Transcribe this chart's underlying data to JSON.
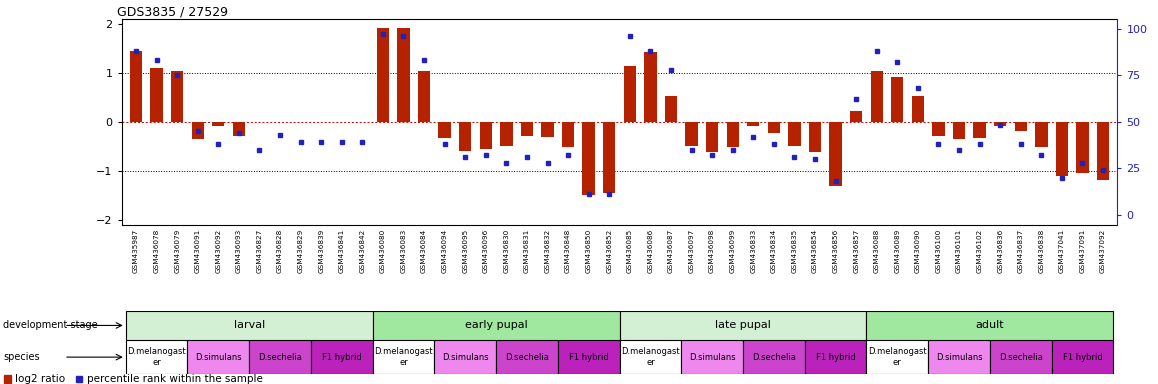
{
  "title": "GDS3835 / 27529",
  "samples": [
    "GSM435987",
    "GSM436078",
    "GSM436079",
    "GSM436091",
    "GSM436092",
    "GSM436093",
    "GSM436827",
    "GSM436828",
    "GSM436829",
    "GSM436839",
    "GSM436841",
    "GSM436842",
    "GSM436080",
    "GSM436083",
    "GSM436084",
    "GSM436094",
    "GSM436095",
    "GSM436096",
    "GSM436830",
    "GSM436831",
    "GSM436832",
    "GSM436848",
    "GSM436850",
    "GSM436852",
    "GSM436085",
    "GSM436086",
    "GSM436087",
    "GSM436097",
    "GSM436098",
    "GSM436099",
    "GSM436833",
    "GSM436834",
    "GSM436835",
    "GSM436854",
    "GSM436856",
    "GSM436857",
    "GSM436088",
    "GSM436089",
    "GSM436090",
    "GSM436100",
    "GSM436101",
    "GSM436102",
    "GSM436836",
    "GSM436837",
    "GSM436838",
    "GSM437041",
    "GSM437091",
    "GSM437092"
  ],
  "log2_ratio": [
    1.45,
    1.1,
    1.05,
    -0.35,
    -0.08,
    -0.28,
    0.0,
    0.0,
    0.0,
    0.0,
    0.0,
    0.0,
    1.92,
    1.92,
    1.05,
    -0.32,
    -0.6,
    -0.55,
    -0.5,
    -0.28,
    -0.3,
    -0.52,
    -1.5,
    -1.45,
    1.15,
    1.42,
    0.52,
    -0.5,
    -0.62,
    -0.52,
    -0.08,
    -0.22,
    -0.5,
    -0.62,
    -1.32,
    0.22,
    1.05,
    0.92,
    0.52,
    -0.28,
    -0.35,
    -0.32,
    -0.08,
    -0.18,
    -0.52,
    -1.1,
    -1.05,
    -1.18
  ],
  "percentile": [
    88,
    83,
    75,
    45,
    38,
    44,
    35,
    43,
    39,
    39,
    39,
    39,
    97,
    96,
    83,
    38,
    31,
    32,
    28,
    31,
    28,
    32,
    11,
    11,
    96,
    88,
    78,
    35,
    32,
    35,
    42,
    38,
    31,
    30,
    18,
    62,
    88,
    82,
    68,
    38,
    35,
    38,
    48,
    38,
    32,
    20,
    28,
    24
  ],
  "dev_stages": [
    {
      "label": "larval",
      "start": 0,
      "end": 11,
      "color": "#d4f0d4"
    },
    {
      "label": "early pupal",
      "start": 12,
      "end": 23,
      "color": "#a0e8a0"
    },
    {
      "label": "late pupal",
      "start": 24,
      "end": 35,
      "color": "#d4f0d4"
    },
    {
      "label": "adult",
      "start": 36,
      "end": 47,
      "color": "#a0e8a0"
    }
  ],
  "species": [
    {
      "label": "D.melanogast\ner",
      "start": 0,
      "end": 2,
      "color": "#ffffff"
    },
    {
      "label": "D.simulans",
      "start": 3,
      "end": 5,
      "color": "#ee88ee"
    },
    {
      "label": "D.sechelia",
      "start": 6,
      "end": 8,
      "color": "#cc44cc"
    },
    {
      "label": "F1 hybrid",
      "start": 9,
      "end": 11,
      "color": "#bb22bb"
    },
    {
      "label": "D.melanogast\ner",
      "start": 12,
      "end": 14,
      "color": "#ffffff"
    },
    {
      "label": "D.simulans",
      "start": 15,
      "end": 17,
      "color": "#ee88ee"
    },
    {
      "label": "D.sechelia",
      "start": 18,
      "end": 20,
      "color": "#cc44cc"
    },
    {
      "label": "F1 hybrid",
      "start": 21,
      "end": 23,
      "color": "#bb22bb"
    },
    {
      "label": "D.melanogast\ner",
      "start": 24,
      "end": 26,
      "color": "#ffffff"
    },
    {
      "label": "D.simulans",
      "start": 27,
      "end": 29,
      "color": "#ee88ee"
    },
    {
      "label": "D.sechelia",
      "start": 30,
      "end": 32,
      "color": "#cc44cc"
    },
    {
      "label": "F1 hybrid",
      "start": 33,
      "end": 35,
      "color": "#bb22bb"
    },
    {
      "label": "D.melanogast\ner",
      "start": 36,
      "end": 38,
      "color": "#ffffff"
    },
    {
      "label": "D.simulans",
      "start": 39,
      "end": 41,
      "color": "#ee88ee"
    },
    {
      "label": "D.sechelia",
      "start": 42,
      "end": 44,
      "color": "#cc44cc"
    },
    {
      "label": "F1 hybrid",
      "start": 45,
      "end": 47,
      "color": "#bb22bb"
    }
  ],
  "bar_color": "#b52200",
  "dot_color": "#2222bb",
  "ylim_left": [
    -2.1,
    2.1
  ],
  "ylim_right": [
    -5.25,
    105
  ],
  "yticks_left": [
    -2,
    -1,
    0,
    1,
    2
  ],
  "yticks_right": [
    0,
    25,
    50,
    75,
    100
  ]
}
